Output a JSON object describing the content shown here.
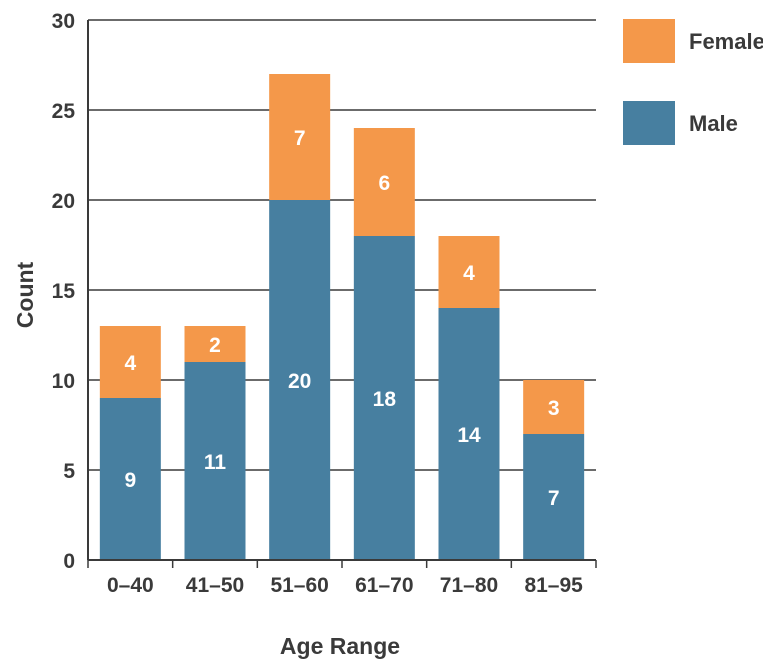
{
  "chart_data": {
    "type": "bar",
    "stacked": true,
    "categories": [
      "0–40",
      "41–50",
      "51–60",
      "61–70",
      "71–80",
      "81–95"
    ],
    "series": [
      {
        "name": "Male",
        "values": [
          9,
          11,
          20,
          18,
          14,
          7
        ],
        "color": "#477fa0"
      },
      {
        "name": "Female",
        "values": [
          4,
          2,
          7,
          6,
          4,
          3
        ],
        "color": "#f4984a"
      }
    ],
    "xlabel": "Age Range",
    "ylabel": "Count",
    "ylim": [
      0,
      30
    ],
    "yticks": [
      0,
      5,
      10,
      15,
      20,
      25,
      30
    ],
    "grid": true,
    "legend": {
      "position": "right",
      "order": [
        "Female",
        "Male"
      ]
    }
  }
}
